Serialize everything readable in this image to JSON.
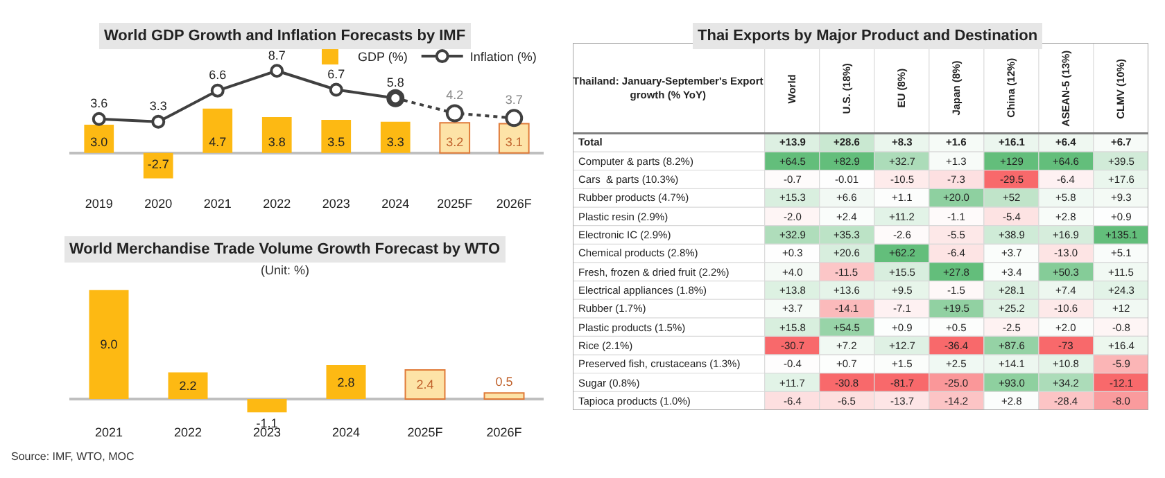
{
  "chart_data": [
    {
      "type": "bar",
      "title": "World GDP Growth and Inflation Forecasts by IMF",
      "categories": [
        "2019",
        "2020",
        "2021",
        "2022",
        "2023",
        "2024",
        "2025F",
        "2026F"
      ],
      "tick_labels": "x",
      "legend": "top right",
      "series": [
        {
          "name": "GDP (%)",
          "type": "bar",
          "color": "#fdb913",
          "colors": [
            "#fdb913",
            "#fdb913",
            "#fdb913",
            "#fdb913",
            "#fdb913",
            "#fdb913",
            "#fde3a7",
            "#fde3a7"
          ],
          "values": [
            3.0,
            -2.7,
            4.7,
            3.8,
            3.5,
            3.3,
            3.2,
            3.1
          ],
          "value_labels": [
            "3.0",
            "-2.7",
            "4.7",
            "3.8",
            "3.5",
            "3.3",
            "3.2",
            "3.1"
          ]
        },
        {
          "name": "Inflation (%)",
          "type": "line",
          "color": "#404040",
          "marker": "circle",
          "line_style": "solid",
          "values": [
            3.6,
            3.3,
            6.6,
            8.7,
            6.7,
            5.8,
            null,
            null
          ],
          "value_labels": [
            "3.6",
            "3.3",
            "6.6",
            "8.7",
            "6.7",
            "5.8",
            null,
            null
          ]
        },
        {
          "type": "line",
          "color": "#404040",
          "marker": "circle",
          "line_style": "dotted",
          "values": [
            null,
            null,
            null,
            null,
            null,
            5.8,
            4.2,
            3.7
          ],
          "value_labels": [
            null,
            null,
            null,
            null,
            null,
            null,
            "4.2",
            "3.7"
          ]
        }
      ]
    },
    {
      "type": "bar",
      "title": "World Merchandise Trade Volume Growth Forecast by WTO",
      "annotations": [
        "(Unit: %)",
        "Source: IMF, WTO, MOC"
      ],
      "categories": [
        "2021",
        "2022",
        "2023",
        "2024",
        "2025F",
        "2026F"
      ],
      "values": [
        9.0,
        2.2,
        -1.1,
        2.8,
        2.4,
        0.5
      ],
      "colors": [
        "#fdb913",
        "#fdb913",
        "#fdb913",
        "#fdb913",
        "#fde3a7",
        "#fde3a7"
      ],
      "value_labels": [
        "9.0",
        "2.2",
        "-1.1",
        "2.8",
        "2.4",
        "0.5"
      ],
      "tick_labels": "x"
    },
    {
      "type": "heatmap",
      "title": "Thai Exports by Major Product and Destination",
      "ylabel": "Thailand: January-September's Export growth (% YoY)",
      "categories": [
        "World",
        "U.S. (18%)",
        "EU (8%)",
        "Japan (8%)",
        "China (12%)",
        "ASEAN-5 (13%)",
        "CLMV (10%)"
      ],
      "y_categories": [
        "Total",
        "Computer & parts (8.2%)",
        "Cars  & parts (10.3%)",
        "Rubber products (4.7%)",
        "Plastic resin (2.9%)",
        "Electronic IC (2.9%)",
        "Chemical products (2.8%)",
        "Fresh, frozen & dried fruit (2.2%)",
        "Electrical appliances (1.8%)",
        "Rubber (1.7%)",
        "Plastic products (1.5%)",
        "Rice (2.1%)",
        "Preserved fish, crustaceans (1.3%)",
        "Sugar (0.8%)",
        "Tapioca products (1.0%)"
      ],
      "cells": [
        [
          13.9,
          28.6,
          8.3,
          1.6,
          16.1,
          6.4,
          6.7
        ],
        [
          64.5,
          82.9,
          32.7,
          1.3,
          129,
          64.6,
          39.5
        ],
        [
          -0.7,
          -0.01,
          -10.5,
          -7.3,
          -29.5,
          -6.4,
          17.6
        ],
        [
          15.3,
          6.6,
          1.1,
          20.0,
          52,
          5.8,
          9.3
        ],
        [
          -2.0,
          2.4,
          11.2,
          -1.1,
          -5.4,
          2.8,
          0.9
        ],
        [
          32.9,
          35.3,
          -2.6,
          -5.5,
          38.9,
          16.9,
          135.1
        ],
        [
          0.3,
          20.6,
          62.2,
          -6.4,
          3.7,
          -13.0,
          5.1
        ],
        [
          4.0,
          -11.5,
          15.5,
          27.8,
          3.4,
          50.3,
          11.5
        ],
        [
          13.8,
          13.6,
          9.5,
          -1.5,
          28.1,
          7.4,
          24.3
        ],
        [
          3.7,
          -14.1,
          -7.1,
          19.5,
          25.2,
          -10.6,
          12
        ],
        [
          15.8,
          54.5,
          0.9,
          0.5,
          -2.5,
          2.0,
          -0.8
        ],
        [
          -30.7,
          7.2,
          12.7,
          -36.4,
          87.6,
          -73,
          16.4
        ],
        [
          -0.4,
          0.7,
          1.5,
          2.5,
          14.1,
          10.8,
          -5.9
        ],
        [
          11.7,
          -30.8,
          -81.7,
          -25.0,
          93.0,
          34.2,
          -12.1
        ],
        [
          -6.4,
          -6.5,
          -13.7,
          -14.2,
          2.8,
          -28.4,
          -8.0
        ]
      ],
      "cell_labels": [
        [
          "+13.9",
          "+28.6",
          "+8.3",
          "+1.6",
          "+16.1",
          "+6.4",
          "+6.7"
        ],
        [
          "+64.5",
          "+82.9",
          "+32.7",
          "+1.3",
          "+129",
          "+64.6",
          "+39.5"
        ],
        [
          "-0.7",
          "-0.01",
          "-10.5",
          "-7.3",
          "-29.5",
          "-6.4",
          "+17.6"
        ],
        [
          "+15.3",
          "+6.6",
          "+1.1",
          "+20.0",
          "+52",
          "+5.8",
          "+9.3"
        ],
        [
          "-2.0",
          "+2.4",
          "+11.2",
          "-1.1",
          "-5.4",
          "+2.8",
          "+0.9"
        ],
        [
          "+32.9",
          "+35.3",
          "-2.6",
          "-5.5",
          "+38.9",
          "+16.9",
          "+135.1"
        ],
        [
          "+0.3",
          "+20.6",
          "+62.2",
          "-6.4",
          "+3.7",
          "-13.0",
          "+5.1"
        ],
        [
          "+4.0",
          "-11.5",
          "+15.5",
          "+27.8",
          "+3.4",
          "+50.3",
          "+11.5"
        ],
        [
          "+13.8",
          "+13.6",
          "+9.5",
          "-1.5",
          "+28.1",
          "+7.4",
          "+24.3"
        ],
        [
          "+3.7",
          "-14.1",
          "-7.1",
          "+19.5",
          "+25.2",
          "-10.6",
          "+12"
        ],
        [
          "+15.8",
          "+54.5",
          "+0.9",
          "+0.5",
          "-2.5",
          "+2.0",
          "-0.8"
        ],
        [
          "-30.7",
          "+7.2",
          "+12.7",
          "-36.4",
          "+87.6",
          "-73",
          "+16.4"
        ],
        [
          "-0.4",
          "+0.7",
          "+1.5",
          "+2.5",
          "+14.1",
          "+10.8",
          "-5.9"
        ],
        [
          "+11.7",
          "-30.8",
          "-81.7",
          "-25.0",
          "+93.0",
          "+34.2",
          "-12.1"
        ],
        [
          "-6.4",
          "-6.5",
          "-13.7",
          "-14.2",
          "+2.8",
          "-28.4",
          "-8.0"
        ]
      ]
    }
  ]
}
